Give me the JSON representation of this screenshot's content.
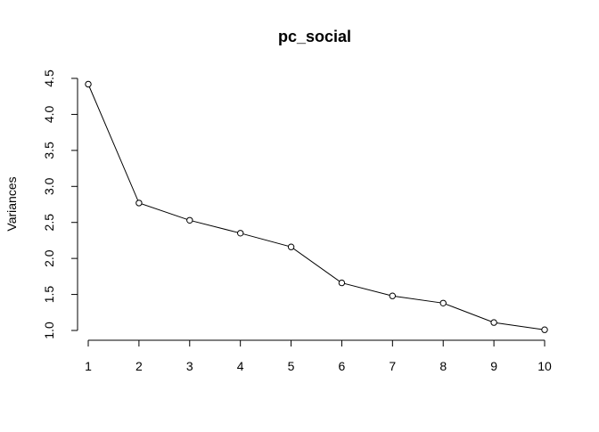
{
  "chart_data": {
    "type": "line",
    "title": "pc_social",
    "xlabel": "",
    "ylabel": "Variances",
    "x": [
      1,
      2,
      3,
      4,
      5,
      6,
      7,
      8,
      9,
      10
    ],
    "series": [
      {
        "values": [
          4.42,
          2.77,
          2.53,
          2.35,
          2.16,
          1.66,
          1.48,
          1.38,
          1.11,
          1.01
        ]
      }
    ],
    "xlim": [
      1,
      10
    ],
    "ylim": [
      1.0,
      4.5
    ],
    "x_ticks": [
      "1",
      "2",
      "3",
      "4",
      "5",
      "6",
      "7",
      "8",
      "9",
      "10"
    ],
    "y_ticks": [
      "1.0",
      "1.5",
      "2.0",
      "2.5",
      "3.0",
      "3.5",
      "4.0",
      "4.5"
    ],
    "grid": false,
    "legend": "none",
    "marker": "open-circle",
    "colors": {
      "line": "#000000",
      "marker_fill": "#ffffff",
      "background": "#ffffff"
    }
  }
}
